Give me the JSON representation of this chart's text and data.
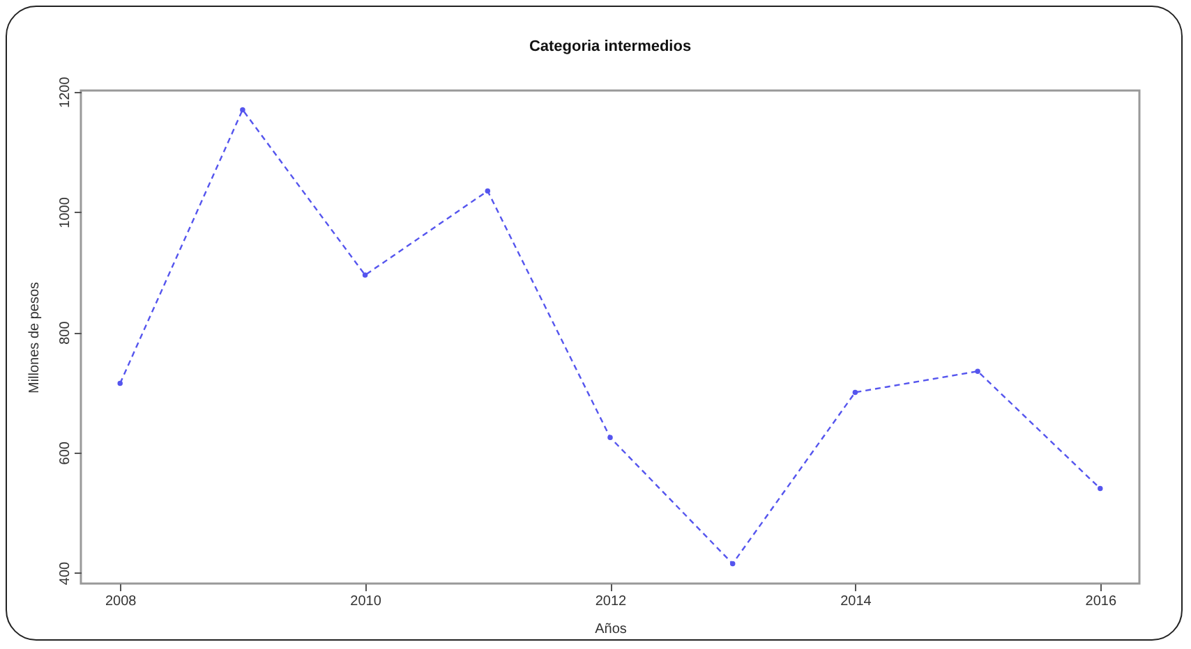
{
  "chart_data": {
    "type": "line",
    "title": "Categoria intermedios",
    "xlabel": "Años",
    "ylabel": "Millones de pesos",
    "x": [
      2008,
      2009,
      2010,
      2011,
      2012,
      2013,
      2014,
      2015,
      2016
    ],
    "series": [
      {
        "color": "#5555ee",
        "values": [
          715,
          1170,
          895,
          1035,
          625,
          415,
          700,
          735,
          540
        ]
      }
    ],
    "xlim": [
      2007.68,
      2016.32
    ],
    "xticks": [
      2008,
      2010,
      2012,
      2014,
      2016
    ],
    "ylim": [
      382,
      1202
    ],
    "yticks": [
      400,
      600,
      800,
      1000,
      1200
    ],
    "marker": "circle",
    "line_style": "dashed",
    "grid": false,
    "legend": false
  }
}
